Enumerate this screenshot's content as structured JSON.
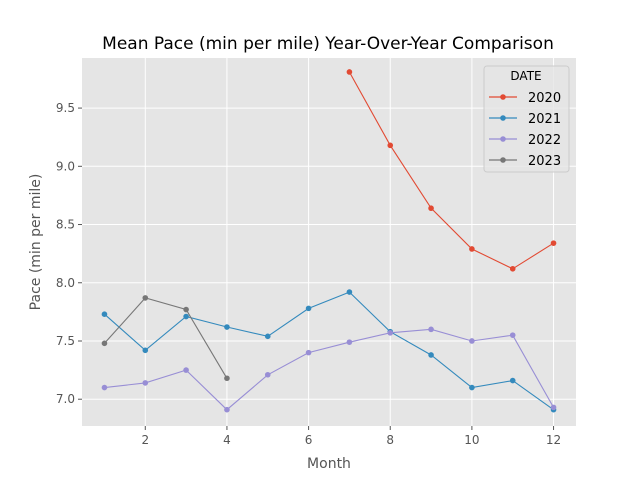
{
  "chart_data": {
    "type": "line",
    "title": "Mean Pace (min per mile) Year-Over-Year Comparison",
    "xlabel": "Month",
    "ylabel": "Pace (min per mile)",
    "xlim": [
      0.45,
      12.55
    ],
    "ylim": [
      6.77,
      9.93
    ],
    "xticks": [
      2,
      4,
      6,
      8,
      10,
      12
    ],
    "yticks": [
      7.0,
      7.5,
      8.0,
      8.5,
      9.0,
      9.5
    ],
    "xtick_labels": [
      "2",
      "4",
      "6",
      "8",
      "10",
      "12"
    ],
    "ytick_labels": [
      "7.0",
      "7.5",
      "8.0",
      "8.5",
      "9.0",
      "9.5"
    ],
    "grid": true,
    "legend": {
      "title": "DATE",
      "placement": "top-right"
    },
    "series": [
      {
        "name": "2020",
        "color": "#E24A33",
        "x": [
          7,
          8,
          9,
          10,
          11,
          12
        ],
        "values": [
          9.81,
          9.18,
          8.64,
          8.29,
          8.12,
          8.34
        ]
      },
      {
        "name": "2021",
        "color": "#348ABD",
        "x": [
          1,
          2,
          3,
          4,
          5,
          6,
          7,
          8,
          9,
          10,
          11,
          12
        ],
        "values": [
          7.73,
          7.42,
          7.71,
          7.62,
          7.54,
          7.78,
          7.92,
          7.58,
          7.38,
          7.1,
          7.16,
          6.91
        ]
      },
      {
        "name": "2022",
        "color": "#988ED5",
        "x": [
          1,
          2,
          3,
          4,
          5,
          6,
          7,
          8,
          9,
          10,
          11,
          12
        ],
        "values": [
          7.1,
          7.14,
          7.25,
          6.91,
          7.21,
          7.4,
          7.49,
          7.57,
          7.6,
          7.5,
          7.55,
          6.93
        ]
      },
      {
        "name": "2023",
        "color": "#777777",
        "x": [
          1,
          2,
          3,
          4
        ],
        "values": [
          7.48,
          7.87,
          7.77,
          7.18
        ]
      }
    ]
  }
}
